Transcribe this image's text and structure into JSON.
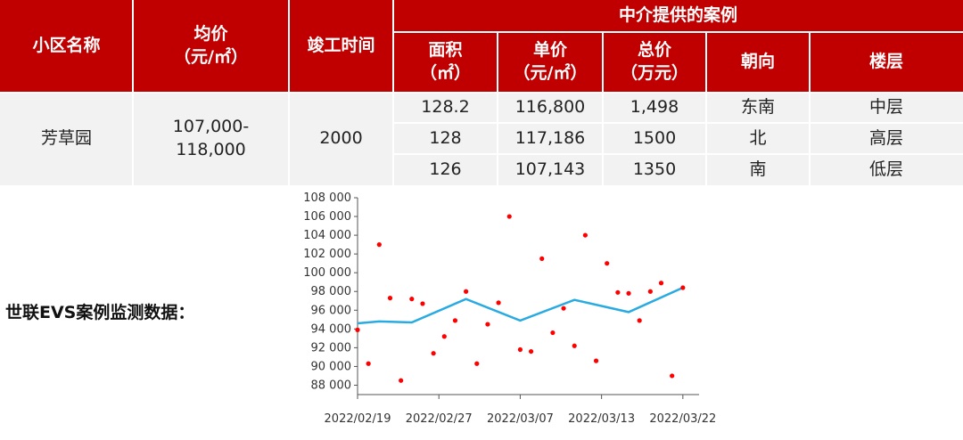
{
  "table": {
    "headers": {
      "community": "小区名称",
      "avg_price": "均价\n（元/㎡）",
      "completion": "竣工时间",
      "group": "中介提供的案例",
      "area": "面积\n（㎡）",
      "unit_price": "单价\n（元/㎡）",
      "total_price": "总价\n（万元）",
      "orientation": "朝向",
      "floor": "楼层"
    },
    "community": "芳草园",
    "avg_price": "107,000-\n118,000",
    "completion": "2000",
    "rows": [
      {
        "area": "128.2",
        "unit_price": "116,800",
        "total_price": "1,498",
        "orientation": "东南",
        "floor": "中层"
      },
      {
        "area": "128",
        "unit_price": "117,186",
        "total_price": "1500",
        "orientation": "北",
        "floor": "高层"
      },
      {
        "area": "126",
        "unit_price": "107,143",
        "total_price": "1350",
        "orientation": "南",
        "floor": "低层"
      }
    ]
  },
  "chart_label": "世联EVS案例监测数据：",
  "colors": {
    "header": "#c00000",
    "body": "#f2f2f2",
    "scatter": "#ff0000",
    "line": "#29abe2"
  },
  "chart_data": {
    "type": "scatter",
    "ylim": [
      87000,
      108000
    ],
    "yticks": [
      88000,
      90000,
      92000,
      94000,
      96000,
      98000,
      100000,
      102000,
      104000,
      106000,
      108000
    ],
    "ytick_labels": [
      "88 000",
      "90 000",
      "92 000",
      "94 000",
      "96 000",
      "98 000",
      "100 000",
      "102 000",
      "104 000",
      "106 000",
      "108 000"
    ],
    "xlim": [
      0,
      31
    ],
    "xticks": [
      {
        "x": 0,
        "label": "2022/02/19"
      },
      {
        "x": 7.5,
        "label": "2022/02/27"
      },
      {
        "x": 15,
        "label": "2022/03/07"
      },
      {
        "x": 22.5,
        "label": "2022/03/13"
      },
      {
        "x": 30,
        "label": "2022/03/22"
      }
    ],
    "series": [
      {
        "kind": "points",
        "values": [
          [
            0,
            93900
          ],
          [
            1,
            90300
          ],
          [
            2,
            103000
          ],
          [
            3,
            97300
          ],
          [
            4,
            88500
          ],
          [
            5,
            97200
          ],
          [
            6,
            96700
          ],
          [
            7,
            91400
          ],
          [
            8,
            93200
          ],
          [
            9,
            94900
          ],
          [
            10,
            98000
          ],
          [
            11,
            90300
          ],
          [
            12,
            94500
          ],
          [
            13,
            96800
          ],
          [
            14,
            106000
          ],
          [
            15,
            91800
          ],
          [
            16,
            91600
          ],
          [
            17,
            101500
          ],
          [
            18,
            93600
          ],
          [
            19,
            96200
          ],
          [
            20,
            92200
          ],
          [
            21,
            104000
          ],
          [
            22,
            90600
          ],
          [
            23,
            101000
          ],
          [
            24,
            97900
          ],
          [
            25,
            97800
          ],
          [
            26,
            94900
          ],
          [
            27,
            98000
          ],
          [
            28,
            98900
          ],
          [
            29,
            89000
          ],
          [
            30,
            98400
          ]
        ]
      },
      {
        "kind": "line",
        "values": [
          [
            0,
            94600
          ],
          [
            2,
            94800
          ],
          [
            5,
            94700
          ],
          [
            10,
            97200
          ],
          [
            15,
            94900
          ],
          [
            20,
            97100
          ],
          [
            25,
            95800
          ],
          [
            30,
            98400
          ]
        ]
      }
    ]
  }
}
